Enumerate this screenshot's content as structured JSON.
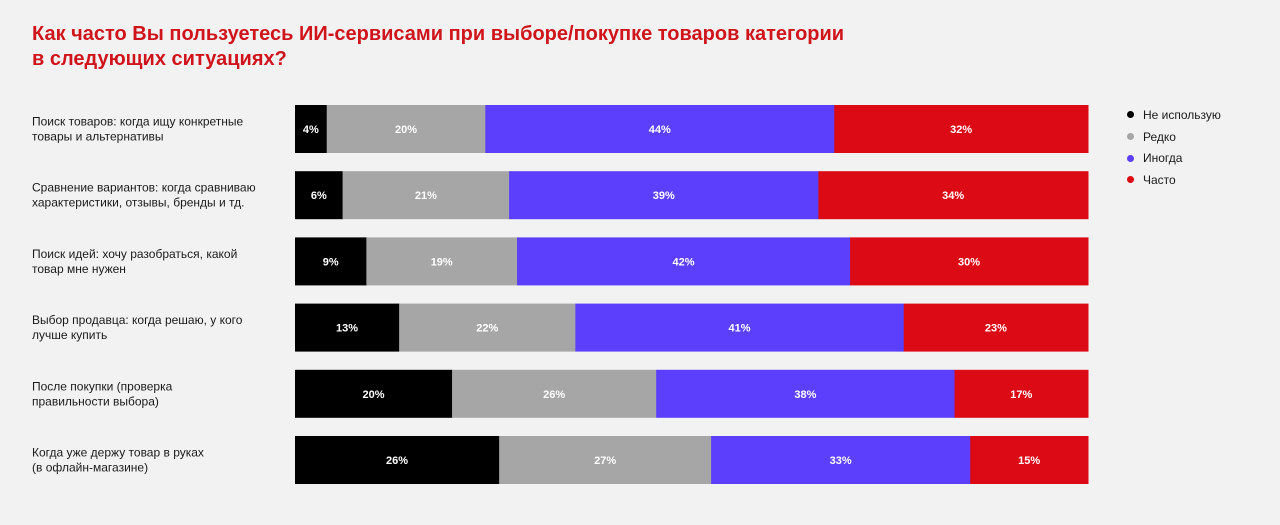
{
  "title": {
    "line1": "Как часто Вы пользуетесь ИИ-сервисами при выборе/покупке товаров категории",
    "line2": "в следующих ситуациях?"
  },
  "colors": {
    "title": "#d0141c",
    "series": [
      "#000000",
      "#a6a6a6",
      "#5b3ffc",
      "#dc0a14"
    ],
    "text_on_black": "#ffffff",
    "text_on_gray": "#ffffff",
    "text_on_blue": "#ffffff",
    "text_on_red": "#ffffff"
  },
  "chart_data": {
    "type": "bar",
    "orientation": "horizontal",
    "stacked": true,
    "normalized_to_100": true,
    "title": "Как часто Вы пользуетесь ИИ-сервисами при выборе/покупке товаров категории в следующих ситуациях?",
    "categories": [
      [
        "Поиск товаров: когда ищу конкретные",
        "товары и альтернативы"
      ],
      [
        "Сравнение вариантов: когда сравниваю",
        "характеристики, отзывы, бренды и тд."
      ],
      [
        "Поиск идей: хочу разобраться, какой",
        "товар мне нужен"
      ],
      [
        "Выбор продавца: когда решаю, у кого",
        "лучше купить"
      ],
      [
        "После покупки (проверка",
        "правильности выбора)"
      ],
      [
        "Когда уже держу товар в руках",
        "(в офлайн-магазине)"
      ]
    ],
    "series": [
      {
        "name": "Не использую",
        "values": [
          4,
          6,
          9,
          13,
          20,
          26
        ]
      },
      {
        "name": "Редко",
        "values": [
          20,
          21,
          19,
          22,
          26,
          27
        ]
      },
      {
        "name": "Иногда",
        "values": [
          44,
          39,
          42,
          41,
          38,
          33
        ]
      },
      {
        "name": "Часто",
        "values": [
          32,
          34,
          30,
          23,
          17,
          15
        ]
      }
    ],
    "value_suffix": "%",
    "legend_position": "right",
    "grid": false
  }
}
